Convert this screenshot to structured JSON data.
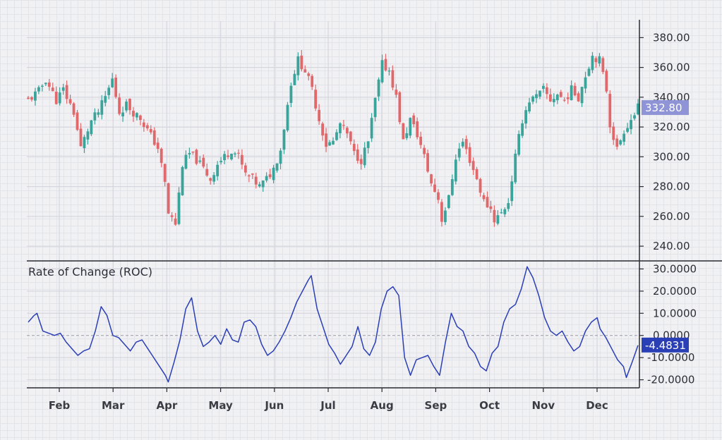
{
  "chart_data": [
    {
      "type": "candlestick",
      "title": "",
      "x_axis": {
        "months": [
          "Feb",
          "Mar",
          "Apr",
          "May",
          "Jun",
          "Jul",
          "Aug",
          "Sep",
          "Oct",
          "Nov",
          "Dec"
        ]
      },
      "y_axis": {
        "ticks": [
          "380.00",
          "360.00",
          "340.00",
          "320.00",
          "300.00",
          "280.00",
          "260.00",
          "240.00"
        ],
        "range": [
          232,
          392
        ]
      },
      "up_color": "#3aa39a",
      "down_color": "#e0686b",
      "last_value_label": "332.80",
      "last_value_color": "#8f94d6",
      "close_path": [
        [
          0,
          338
        ],
        [
          3,
          344
        ],
        [
          5,
          352
        ],
        [
          8,
          338
        ],
        [
          10,
          345
        ],
        [
          13,
          330
        ],
        [
          15,
          306
        ],
        [
          18,
          324
        ],
        [
          20,
          330
        ],
        [
          22,
          340
        ],
        [
          24,
          352
        ],
        [
          26,
          330
        ],
        [
          28,
          335
        ],
        [
          30,
          330
        ],
        [
          32,
          326
        ],
        [
          35,
          314
        ],
        [
          37,
          306
        ],
        [
          39,
          282
        ],
        [
          40,
          262
        ],
        [
          42,
          255
        ],
        [
          44,
          295
        ],
        [
          46,
          302
        ],
        [
          48,
          298
        ],
        [
          50,
          292
        ],
        [
          52,
          285
        ],
        [
          54,
          295
        ],
        [
          56,
          300
        ],
        [
          58,
          305
        ],
        [
          60,
          300
        ],
        [
          62,
          288
        ],
        [
          64,
          285
        ],
        [
          66,
          280
        ],
        [
          68,
          285
        ],
        [
          70,
          292
        ],
        [
          72,
          305
        ],
        [
          73,
          320
        ],
        [
          75,
          350
        ],
        [
          77,
          365
        ],
        [
          79,
          358
        ],
        [
          81,
          345
        ],
        [
          83,
          325
        ],
        [
          85,
          308
        ],
        [
          87,
          310
        ],
        [
          89,
          322
        ],
        [
          91,
          315
        ],
        [
          93,
          302
        ],
        [
          95,
          298
        ],
        [
          97,
          310
        ],
        [
          99,
          338
        ],
        [
          101,
          362
        ],
        [
          103,
          358
        ],
        [
          105,
          340
        ],
        [
          107,
          310
        ],
        [
          109,
          325
        ],
        [
          111,
          315
        ],
        [
          113,
          300
        ],
        [
          115,
          282
        ],
        [
          117,
          272
        ],
        [
          118,
          258
        ],
        [
          120,
          272
        ],
        [
          122,
          300
        ],
        [
          124,
          310
        ],
        [
          126,
          298
        ],
        [
          128,
          285
        ],
        [
          130,
          270
        ],
        [
          132,
          265
        ],
        [
          133,
          258
        ],
        [
          135,
          262
        ],
        [
          137,
          270
        ],
        [
          139,
          300
        ],
        [
          141,
          325
        ],
        [
          143,
          338
        ],
        [
          145,
          340
        ],
        [
          147,
          345
        ],
        [
          149,
          338
        ],
        [
          151,
          342
        ],
        [
          153,
          338
        ],
        [
          155,
          345
        ],
        [
          157,
          340
        ],
        [
          159,
          355
        ],
        [
          161,
          368
        ],
        [
          163,
          365
        ],
        [
          165,
          345
        ],
        [
          166,
          322
        ],
        [
          168,
          305
        ],
        [
          170,
          318
        ],
        [
          172,
          325
        ],
        [
          174,
          332.8
        ]
      ]
    },
    {
      "type": "line",
      "title": "Rate of Change (ROC)",
      "y_axis": {
        "ticks": [
          "30.0000",
          "20.0000",
          "10.0000",
          "0.0000",
          "-10.0000",
          "-20.0000"
        ],
        "range": [
          -23,
          33
        ]
      },
      "zero_line": "dashed",
      "line_color": "#2a3fb5",
      "last_value_label": "-4.4831",
      "last_value_color": "#2a3fb5",
      "roc_path": [
        [
          0,
          6
        ],
        [
          2,
          9
        ],
        [
          3,
          10
        ],
        [
          5,
          2
        ],
        [
          7,
          1
        ],
        [
          9,
          0
        ],
        [
          11,
          1
        ],
        [
          13,
          -3
        ],
        [
          15,
          -6
        ],
        [
          17,
          -9
        ],
        [
          19,
          -7
        ],
        [
          21,
          -6
        ],
        [
          23,
          2
        ],
        [
          25,
          13
        ],
        [
          27,
          9
        ],
        [
          29,
          0
        ],
        [
          31,
          -1
        ],
        [
          33,
          -4
        ],
        [
          35,
          -7
        ],
        [
          37,
          -3
        ],
        [
          39,
          -2
        ],
        [
          41,
          -6
        ],
        [
          43,
          -10
        ],
        [
          45,
          -14
        ],
        [
          47,
          -18
        ],
        [
          48,
          -21
        ],
        [
          50,
          -12
        ],
        [
          52,
          -2
        ],
        [
          54,
          12
        ],
        [
          56,
          17
        ],
        [
          58,
          2
        ],
        [
          60,
          -5
        ],
        [
          62,
          -3
        ],
        [
          64,
          0
        ],
        [
          66,
          -4
        ],
        [
          68,
          3
        ],
        [
          70,
          -2
        ],
        [
          72,
          -3
        ],
        [
          74,
          6
        ],
        [
          76,
          7
        ],
        [
          78,
          4
        ],
        [
          80,
          -4
        ],
        [
          82,
          -9
        ],
        [
          84,
          -7
        ],
        [
          86,
          -3
        ],
        [
          88,
          2
        ],
        [
          90,
          8
        ],
        [
          92,
          15
        ],
        [
          94,
          20
        ],
        [
          96,
          25
        ],
        [
          97,
          27
        ],
        [
          99,
          12
        ],
        [
          101,
          4
        ],
        [
          103,
          -4
        ],
        [
          105,
          -8
        ],
        [
          107,
          -13
        ],
        [
          109,
          -9
        ],
        [
          111,
          -5
        ],
        [
          113,
          4
        ],
        [
          115,
          -6
        ],
        [
          117,
          -9
        ],
        [
          119,
          -3
        ],
        [
          121,
          12
        ],
        [
          123,
          20
        ],
        [
          125,
          22
        ],
        [
          127,
          18
        ],
        [
          129,
          -10
        ],
        [
          131,
          -18
        ],
        [
          133,
          -11
        ],
        [
          135,
          -10
        ],
        [
          137,
          -9
        ],
        [
          139,
          -14
        ],
        [
          141,
          -18
        ],
        [
          143,
          -3
        ],
        [
          145,
          10
        ],
        [
          147,
          4
        ],
        [
          149,
          2
        ],
        [
          151,
          -5
        ],
        [
          153,
          -8
        ],
        [
          155,
          -14
        ],
        [
          157,
          -16
        ],
        [
          159,
          -8
        ],
        [
          161,
          -5
        ],
        [
          163,
          6
        ],
        [
          165,
          12
        ],
        [
          167,
          14
        ],
        [
          169,
          21
        ],
        [
          171,
          31
        ],
        [
          173,
          26
        ],
        [
          175,
          18
        ],
        [
          177,
          8
        ],
        [
          179,
          2
        ],
        [
          181,
          0
        ],
        [
          183,
          2
        ],
        [
          185,
          -3
        ],
        [
          187,
          -7
        ],
        [
          189,
          -5
        ],
        [
          191,
          2
        ],
        [
          193,
          6
        ],
        [
          195,
          8
        ],
        [
          196,
          3
        ],
        [
          198,
          -1
        ],
        [
          200,
          -6
        ],
        [
          202,
          -11
        ],
        [
          204,
          -14
        ],
        [
          205,
          -19
        ],
        [
          207,
          -12
        ],
        [
          209,
          -4.4831
        ]
      ]
    }
  ]
}
